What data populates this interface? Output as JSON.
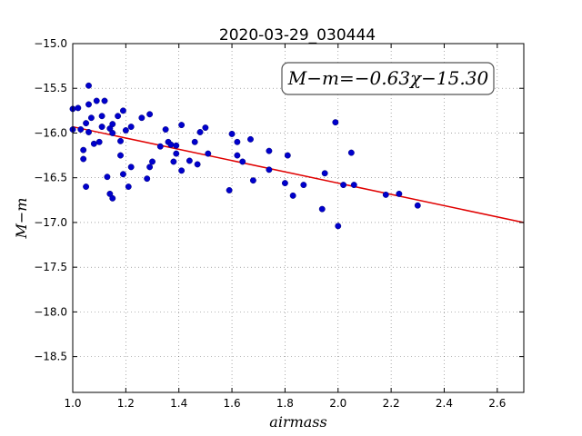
{
  "chart_data": {
    "type": "scatter",
    "title": "2020-03-29_030444",
    "xlabel": "airmass",
    "ylabel": "M−m",
    "xlim": [
      1.0,
      2.7
    ],
    "ylim": [
      -15.0,
      -18.9
    ],
    "y_inverted": true,
    "grid": true,
    "x_ticks": [
      "1.0",
      "1.2",
      "1.4",
      "1.6",
      "1.8",
      "2.0",
      "2.2",
      "2.4",
      "2.6"
    ],
    "y_ticks": [
      "−15.0",
      "−15.5",
      "−16.0",
      "−16.5",
      "−17.0",
      "−17.5",
      "−18.0",
      "−18.5"
    ],
    "annotation": "M−m=−0.63χ−15.30",
    "fit": {
      "slope": -0.63,
      "intercept": -15.3,
      "color": "#e00000"
    },
    "point_color": "#0000cc",
    "points": [
      [
        1.0,
        -15.73
      ],
      [
        1.0,
        -15.96
      ],
      [
        1.02,
        -15.72
      ],
      [
        1.03,
        -15.96
      ],
      [
        1.04,
        -16.19
      ],
      [
        1.04,
        -16.29
      ],
      [
        1.05,
        -15.89
      ],
      [
        1.05,
        -16.6
      ],
      [
        1.06,
        -15.47
      ],
      [
        1.06,
        -15.68
      ],
      [
        1.06,
        -15.99
      ],
      [
        1.07,
        -15.83
      ],
      [
        1.08,
        -16.12
      ],
      [
        1.09,
        -15.64
      ],
      [
        1.1,
        -16.1
      ],
      [
        1.11,
        -15.93
      ],
      [
        1.11,
        -15.81
      ],
      [
        1.12,
        -15.64
      ],
      [
        1.13,
        -16.49
      ],
      [
        1.14,
        -15.95
      ],
      [
        1.14,
        -16.68
      ],
      [
        1.15,
        -15.9
      ],
      [
        1.15,
        -16.0
      ],
      [
        1.15,
        -16.73
      ],
      [
        1.17,
        -15.81
      ],
      [
        1.18,
        -16.09
      ],
      [
        1.18,
        -16.25
      ],
      [
        1.19,
        -15.75
      ],
      [
        1.19,
        -16.46
      ],
      [
        1.2,
        -15.97
      ],
      [
        1.21,
        -16.6
      ],
      [
        1.22,
        -16.38
      ],
      [
        1.22,
        -15.93
      ],
      [
        1.26,
        -15.83
      ],
      [
        1.28,
        -16.51
      ],
      [
        1.29,
        -16.38
      ],
      [
        1.29,
        -15.79
      ],
      [
        1.3,
        -16.32
      ],
      [
        1.33,
        -16.15
      ],
      [
        1.35,
        -15.96
      ],
      [
        1.36,
        -16.1
      ],
      [
        1.37,
        -16.13
      ],
      [
        1.38,
        -16.32
      ],
      [
        1.39,
        -16.14
      ],
      [
        1.39,
        -16.23
      ],
      [
        1.41,
        -15.91
      ],
      [
        1.41,
        -16.42
      ],
      [
        1.44,
        -16.31
      ],
      [
        1.46,
        -16.1
      ],
      [
        1.47,
        -16.35
      ],
      [
        1.48,
        -15.99
      ],
      [
        1.5,
        -15.94
      ],
      [
        1.51,
        -16.23
      ],
      [
        1.59,
        -16.64
      ],
      [
        1.6,
        -16.01
      ],
      [
        1.62,
        -16.25
      ],
      [
        1.62,
        -16.1
      ],
      [
        1.64,
        -16.32
      ],
      [
        1.67,
        -16.07
      ],
      [
        1.68,
        -16.53
      ],
      [
        1.74,
        -16.41
      ],
      [
        1.74,
        -16.2
      ],
      [
        1.8,
        -16.56
      ],
      [
        1.81,
        -16.25
      ],
      [
        1.83,
        -16.7
      ],
      [
        1.87,
        -16.58
      ],
      [
        1.94,
        -16.85
      ],
      [
        1.95,
        -16.45
      ],
      [
        1.99,
        -15.88
      ],
      [
        2.0,
        -17.04
      ],
      [
        2.02,
        -16.58
      ],
      [
        2.05,
        -16.22
      ],
      [
        2.06,
        -16.58
      ],
      [
        2.18,
        -16.69
      ],
      [
        2.23,
        -16.68
      ],
      [
        2.3,
        -16.81
      ]
    ]
  }
}
